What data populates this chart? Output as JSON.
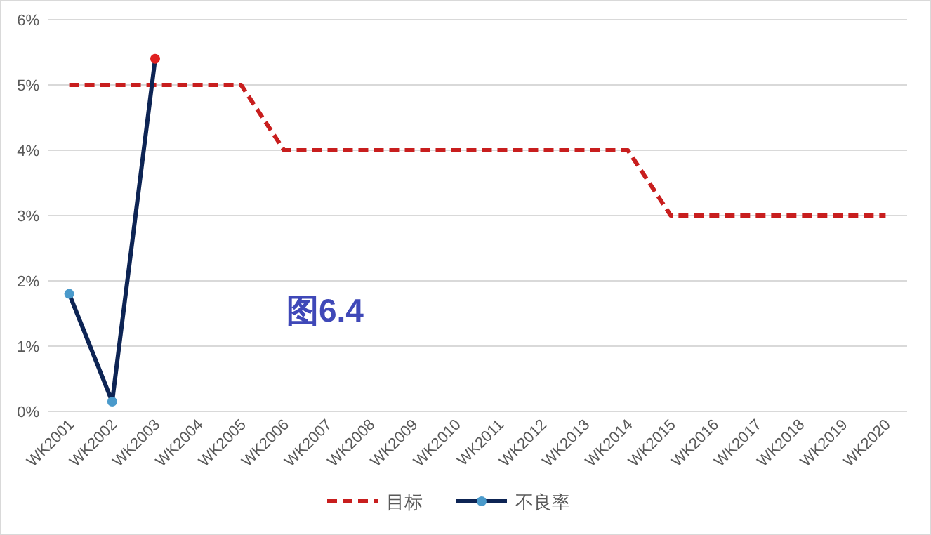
{
  "chart_data": {
    "type": "line",
    "categories": [
      "WK2001",
      "WK2002",
      "WK2003",
      "WK2004",
      "WK2005",
      "WK2006",
      "WK2007",
      "WK2008",
      "WK2009",
      "WK2010",
      "WK2011",
      "WK2012",
      "WK2013",
      "WK2014",
      "WK2015",
      "WK2016",
      "WK2017",
      "WK2018",
      "WK2019",
      "WK2020"
    ],
    "series": [
      {
        "name": "目标",
        "color": "#c81e1e",
        "line_style": "dashed",
        "marker": "none",
        "values": [
          5,
          5,
          5,
          5,
          5,
          4,
          4,
          4,
          4,
          4,
          4,
          4,
          4,
          4,
          3,
          3,
          3,
          3,
          3,
          3
        ]
      },
      {
        "name": "不良率",
        "color": "#0d2454",
        "line_style": "solid",
        "marker": "circle",
        "colors": [
          "#4a9acb",
          "#4a9acb",
          "#e02020",
          null,
          null,
          null,
          null,
          null,
          null,
          null,
          null,
          null,
          null,
          null,
          null,
          null,
          null,
          null,
          null,
          null
        ],
        "values": [
          1.8,
          0.15,
          5.4,
          null,
          null,
          null,
          null,
          null,
          null,
          null,
          null,
          null,
          null,
          null,
          null,
          null,
          null,
          null,
          null,
          null
        ]
      }
    ],
    "ylim": [
      0,
      6
    ],
    "yticks": [
      {
        "value": 0,
        "label": "0%"
      },
      {
        "value": 1,
        "label": "1%"
      },
      {
        "value": 2,
        "label": "2%"
      },
      {
        "value": 3,
        "label": "3%"
      },
      {
        "value": 4,
        "label": "4%"
      },
      {
        "value": 5,
        "label": "5%"
      },
      {
        "value": 6,
        "label": "6%"
      }
    ],
    "grid": "y",
    "legend": "bottom",
    "annotations": [
      "图6.4"
    ]
  }
}
